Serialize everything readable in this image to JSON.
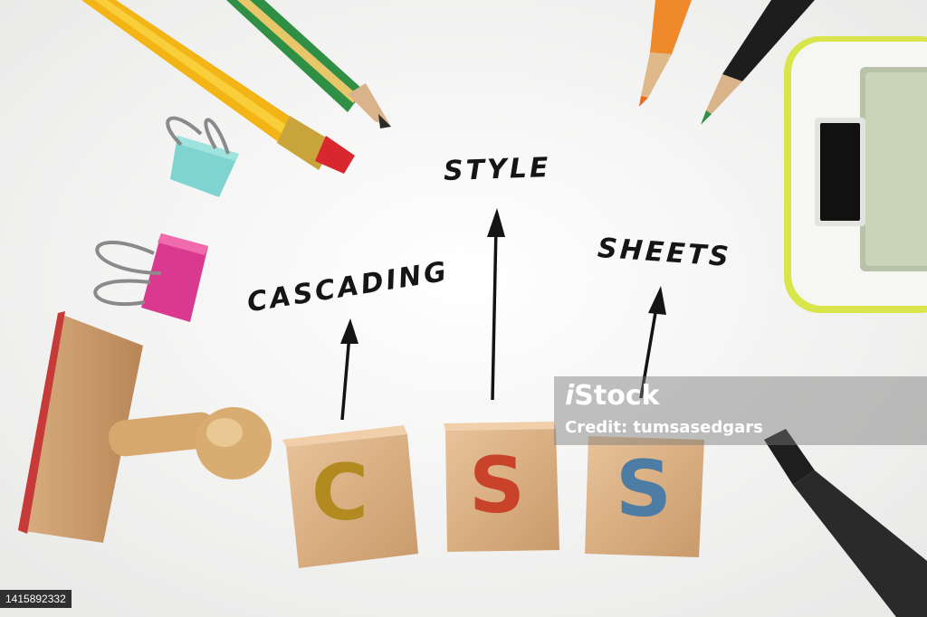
{
  "words": {
    "cascading": "CASCADING",
    "style": "STYLE",
    "sheets": "SHEETS"
  },
  "blocks": {
    "c": "C",
    "s1": "S",
    "s2": "S"
  },
  "colors": {
    "c_block_letter": "#b28a1f",
    "s_block_letter": "#c8432a",
    "s2_block_letter": "#4d7da5"
  },
  "watermark": {
    "brand_prefix": "i",
    "brand_text": "Stock",
    "credit": "Credit: tumsasedgars"
  },
  "stock_id": "1415892332"
}
